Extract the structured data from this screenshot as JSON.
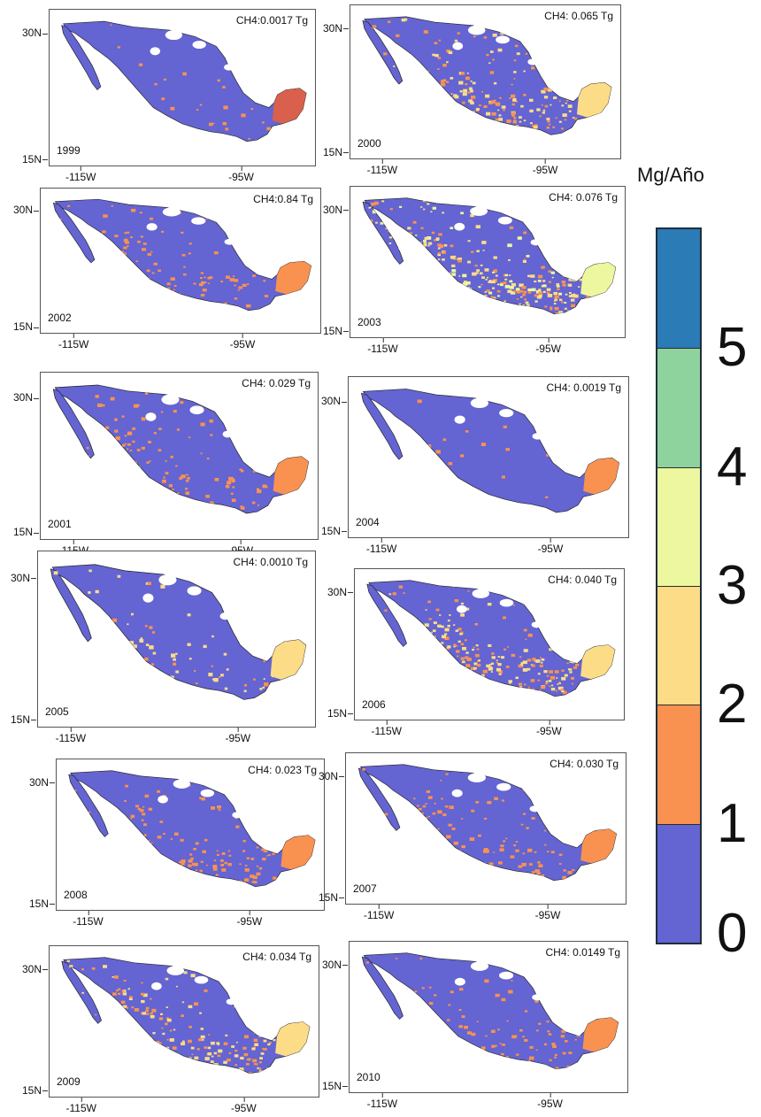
{
  "legend": {
    "title": "Mg/Año",
    "bins": [
      {
        "from": 0,
        "to": 1,
        "color": "#6464d2"
      },
      {
        "from": 1,
        "to": 2,
        "color": "#f99250"
      },
      {
        "from": 2,
        "to": 3,
        "color": "#fcdc87"
      },
      {
        "from": 3,
        "to": 4,
        "color": "#ecf7a0"
      },
      {
        "from": 4,
        "to": 5,
        "color": "#8ed29e"
      },
      {
        "from": 5,
        "to": 6,
        "color": "#2b7bb7"
      }
    ],
    "labels": [
      "0",
      "1",
      "2",
      "3",
      "4",
      "5"
    ]
  },
  "axes": {
    "lat_labels": [
      "30N",
      "15N"
    ],
    "lon_labels": [
      "-115W",
      "-95W"
    ]
  },
  "panels": [
    {
      "year": "1999",
      "ch4": "CH4:0.0017 Tg",
      "density": 0.05,
      "hot": 1,
      "peninsula": "#d8604c",
      "border_color": "#333"
    },
    {
      "year": "2000",
      "ch4": "CH4: 0.065 Tg",
      "density": 0.35,
      "hot": 2,
      "peninsula": "#fcdc87"
    },
    {
      "year": "2002",
      "ch4": "CH4:0.84 Tg",
      "density": 0.18,
      "hot": 1,
      "peninsula": "#f99250"
    },
    {
      "year": "2003",
      "ch4": "CH4: 0.076 Tg",
      "density": 0.55,
      "hot": 3,
      "peninsula": "#ecf7a0"
    },
    {
      "year": "2001",
      "ch4": "CH4: 0.029 Tg",
      "density": 0.22,
      "hot": 1,
      "peninsula": "#f99250"
    },
    {
      "year": "2004",
      "ch4": "CH4: 0.0019 Tg",
      "density": 0.03,
      "hot": 1,
      "peninsula": "#f99250"
    },
    {
      "year": "2005",
      "ch4": "CH4: 0.0010 Tg",
      "density": 0.12,
      "hot": 2,
      "peninsula": "#fcdc87"
    },
    {
      "year": "2006",
      "ch4": "CH4: 0.040 Tg",
      "density": 0.4,
      "hot": 2,
      "peninsula": "#fcdc87"
    },
    {
      "year": "2008",
      "ch4": "CH4: 0.023 Tg",
      "density": 0.22,
      "hot": 1,
      "peninsula": "#f99250"
    },
    {
      "year": "2007",
      "ch4": "CH4: 0.030 Tg",
      "density": 0.22,
      "hot": 1,
      "peninsula": "#f99250"
    },
    {
      "year": "2009",
      "ch4": "CH4: 0.034 Tg",
      "density": 0.35,
      "hot": 2,
      "peninsula": "#fcdc87"
    },
    {
      "year": "2010",
      "ch4": "CH4: 0.0149 Tg",
      "density": 0.18,
      "hot": 1,
      "peninsula": "#f99250"
    }
  ]
}
